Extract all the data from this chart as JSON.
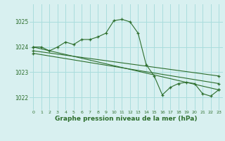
{
  "title": "Graphe pression niveau de la mer (hPa)",
  "bg_color": "#d8f0f0",
  "grid_color": "#aadddd",
  "line_color": "#2d6e2d",
  "xlim": [
    -0.5,
    23.5
  ],
  "ylim": [
    1021.5,
    1025.7
  ],
  "yticks": [
    1022,
    1023,
    1024,
    1025
  ],
  "xticks": [
    0,
    1,
    2,
    3,
    4,
    5,
    6,
    7,
    8,
    9,
    10,
    11,
    12,
    13,
    14,
    15,
    16,
    17,
    18,
    19,
    20,
    21,
    22,
    23
  ],
  "series1_x": [
    0,
    1,
    2,
    3,
    4,
    5,
    6,
    7,
    8,
    9,
    10,
    11,
    12,
    13,
    14,
    15,
    16,
    17,
    18,
    19,
    20,
    21,
    22,
    23
  ],
  "series1_y": [
    1024.0,
    1024.0,
    1023.85,
    1024.0,
    1024.2,
    1024.1,
    1024.3,
    1024.3,
    1024.4,
    1024.55,
    1025.05,
    1025.1,
    1025.0,
    1024.55,
    1023.3,
    1022.85,
    1022.1,
    1022.4,
    1022.55,
    1022.6,
    1022.55,
    1022.15,
    1022.05,
    1022.3
  ],
  "series2_x": [
    0,
    23
  ],
  "series2_y": [
    1024.0,
    1022.3
  ],
  "series3_x": [
    0,
    23
  ],
  "series3_y": [
    1023.85,
    1022.85
  ],
  "series4_x": [
    0,
    23
  ],
  "series4_y": [
    1023.75,
    1022.55
  ],
  "ylabel_fontsize": 5.5,
  "xlabel_fontsize": 4.5,
  "title_fontsize": 6.5
}
